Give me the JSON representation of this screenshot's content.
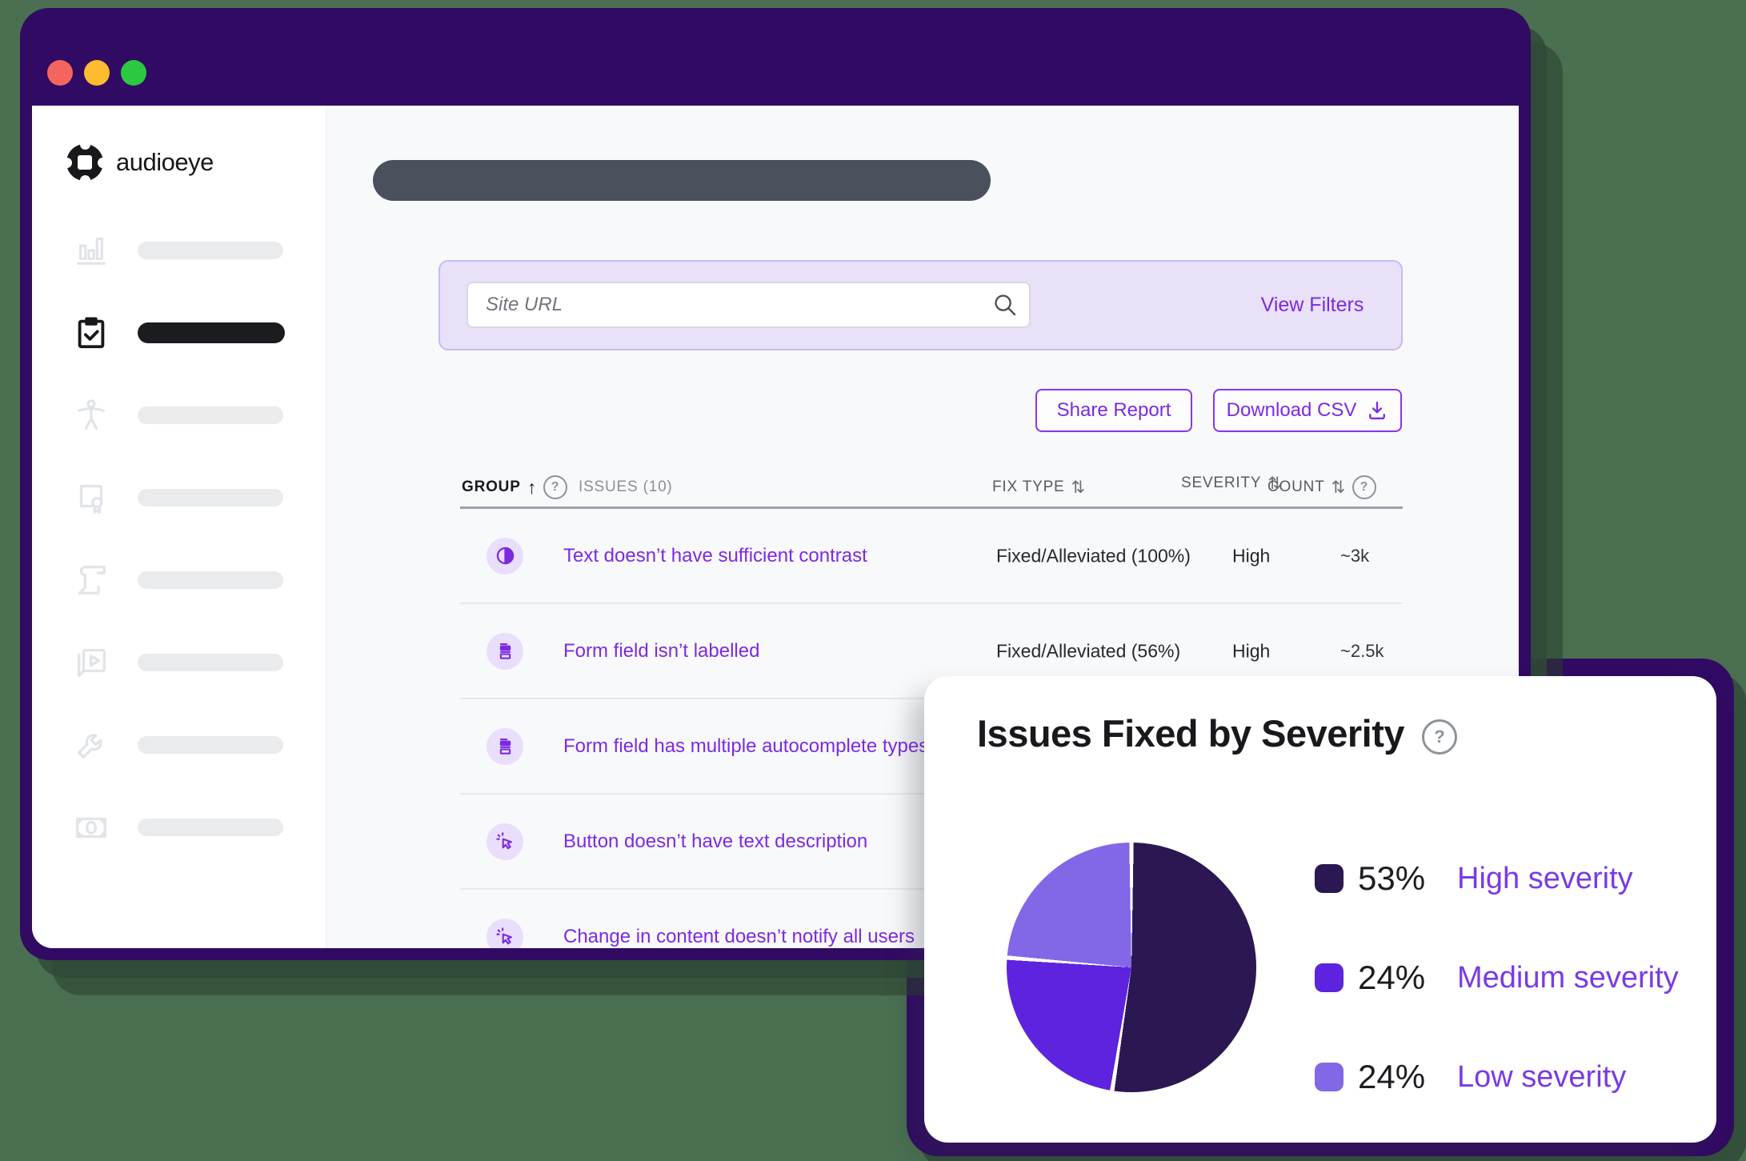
{
  "colors": {
    "background_green": "#4a7051",
    "window_purple": "#310a63",
    "accent_purple": "#7a2be2",
    "lavender_panel": "#e8e1f8",
    "row_icon_bg": "#e9defb",
    "top_pill_gray": "#4a505c",
    "traffic_red": "#f4655f",
    "traffic_yellow": "#fcbc2e",
    "traffic_green": "#2ac93f"
  },
  "sidebar": {
    "logo_text": "audioeye",
    "items": [
      {
        "icon": "bar-chart-icon",
        "active": false
      },
      {
        "icon": "clipboard-check-icon",
        "active": true
      },
      {
        "icon": "accessibility-icon",
        "active": false
      },
      {
        "icon": "certificate-icon",
        "active": false
      },
      {
        "icon": "scroll-icon",
        "active": false
      },
      {
        "icon": "video-icon",
        "active": false
      },
      {
        "icon": "wrench-icon",
        "active": false
      },
      {
        "icon": "money-icon",
        "active": false
      }
    ]
  },
  "toolbar": {
    "search_placeholder": "Site URL",
    "view_filters_label": "View Filters",
    "share_report_label": "Share Report",
    "download_csv_label": "Download CSV"
  },
  "table": {
    "headers": {
      "group": "GROUP",
      "issues": "ISSUES (10)",
      "fix_type": "FIX TYPE",
      "severity": "SEVERITY",
      "count": "COUNT"
    },
    "rows": [
      {
        "icon": "contrast-icon",
        "issue": "Text doesn’t have sufficient contrast",
        "fix_type": "Fixed/Alleviated (100%)",
        "severity": "High",
        "count": "~3k"
      },
      {
        "icon": "form-field-icon",
        "issue": "Form field isn’t labelled",
        "fix_type": "Fixed/Alleviated (56%)",
        "severity": "High",
        "count": "~2.5k"
      },
      {
        "icon": "form-field-icon",
        "issue": "Form field has multiple autocomplete types",
        "fix_type": "",
        "severity": "",
        "count": ""
      },
      {
        "icon": "click-icon",
        "issue": "Button doesn’t have text description",
        "fix_type": "",
        "severity": "",
        "count": ""
      },
      {
        "icon": "click-icon",
        "issue": "Change in content doesn’t notify all users",
        "fix_type": "",
        "severity": "",
        "count": ""
      }
    ]
  },
  "severity_card": {
    "title": "Issues Fixed by Severity"
  },
  "chart_data": {
    "type": "pie",
    "title": "Issues Fixed by Severity",
    "legend_position": "right",
    "start_angle_deg": 0,
    "direction": "clockwise",
    "slices": [
      {
        "label": "High severity",
        "value_pct": 53,
        "color": "#2b1752"
      },
      {
        "label": "Medium severity",
        "value_pct": 24,
        "color": "#5d23de"
      },
      {
        "label": "Low severity",
        "value_pct": 24,
        "color": "#8267e7"
      }
    ]
  }
}
